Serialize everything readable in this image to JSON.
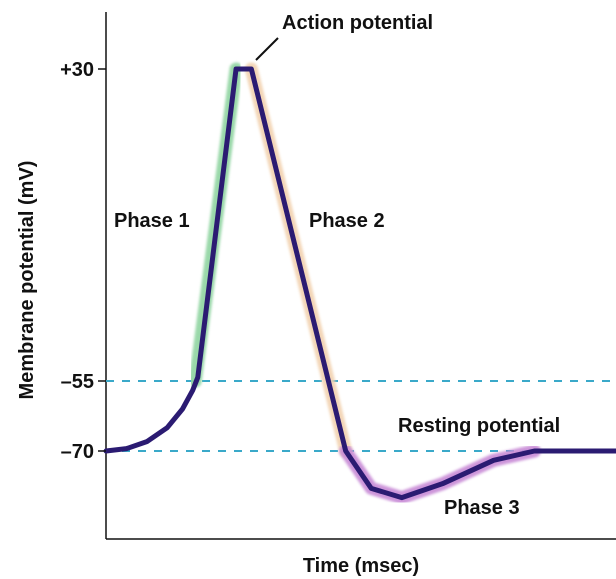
{
  "chart_data": {
    "type": "line",
    "xlabel": "Time (msec)",
    "ylabel": "Membrane potential (mV)",
    "y_ticks": [
      {
        "value": 30,
        "label": "+30"
      },
      {
        "value": -55,
        "label": "–55"
      },
      {
        "value": -70,
        "label": "–70"
      }
    ],
    "ylim": [
      -90,
      40
    ],
    "xlim": [
      0,
      100
    ],
    "reference_lines": [
      {
        "value": -55,
        "color": "#3aa9c9",
        "style": "dashed"
      },
      {
        "value": -70,
        "color": "#3aa9c9",
        "style": "dashed"
      }
    ],
    "series": [
      {
        "color": "#2b1b72",
        "points": [
          [
            0,
            -70
          ],
          [
            4,
            -69.5
          ],
          [
            8,
            -68
          ],
          [
            12,
            -65
          ],
          [
            15,
            -61
          ],
          [
            17,
            -57
          ],
          [
            18,
            -54
          ],
          [
            25.5,
            30
          ],
          [
            28.5,
            30
          ],
          [
            47,
            -70
          ],
          [
            52,
            -78
          ],
          [
            58,
            -80
          ],
          [
            66,
            -77
          ],
          [
            76,
            -72
          ],
          [
            84,
            -70
          ],
          [
            100,
            -70
          ]
        ]
      }
    ],
    "phase_highlights": [
      {
        "phase": "Phase 1",
        "color": "#8fd4a0",
        "points": [
          [
            17.5,
            -55
          ],
          [
            25.5,
            30
          ]
        ]
      },
      {
        "phase": "Phase 2",
        "color": "#f2d2b0",
        "points": [
          [
            28.5,
            30
          ],
          [
            47,
            -70
          ]
        ]
      },
      {
        "phase": "Phase 3",
        "color": "#c88ad6",
        "points": [
          [
            47,
            -70
          ],
          [
            52,
            -78
          ],
          [
            58,
            -80
          ],
          [
            66,
            -77
          ],
          [
            76,
            -72
          ],
          [
            84,
            -70
          ]
        ]
      }
    ],
    "labels": {
      "action_potential": "Action potential",
      "phase_1": "Phase 1",
      "phase_2": "Phase 2",
      "phase_3": "Phase 3",
      "resting_potential": "Resting potential"
    },
    "grid": false,
    "legend": "none"
  }
}
